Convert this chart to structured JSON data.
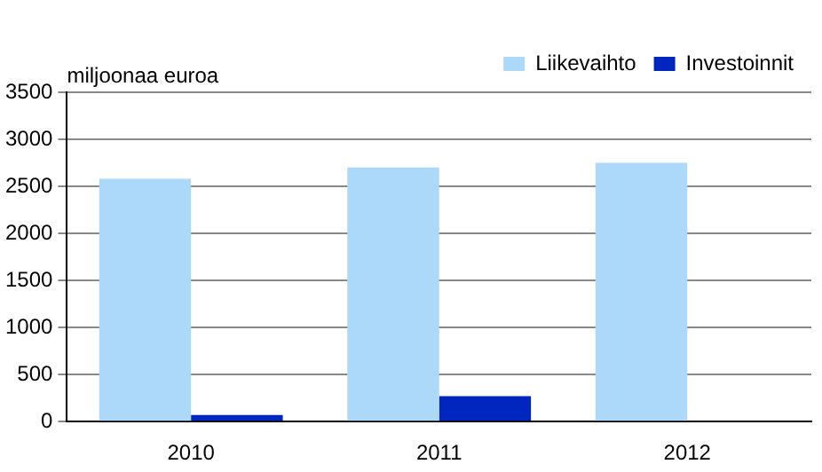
{
  "chart_data": {
    "type": "bar",
    "ylabel": "miljoonaa euroa",
    "categories": [
      "2010",
      "2011",
      "2012"
    ],
    "series": [
      {
        "name": "Liikevaihto",
        "color": "#acd8fa",
        "values": [
          2580,
          2700,
          2750
        ]
      },
      {
        "name": "Investoinnit",
        "color": "#0026c0",
        "values": [
          70,
          270,
          null
        ]
      }
    ],
    "ylim": [
      0,
      3500
    ],
    "yticks": [
      0,
      500,
      1000,
      1500,
      2000,
      2500,
      3000,
      3500
    ],
    "grid": "y",
    "legend": "top right"
  }
}
